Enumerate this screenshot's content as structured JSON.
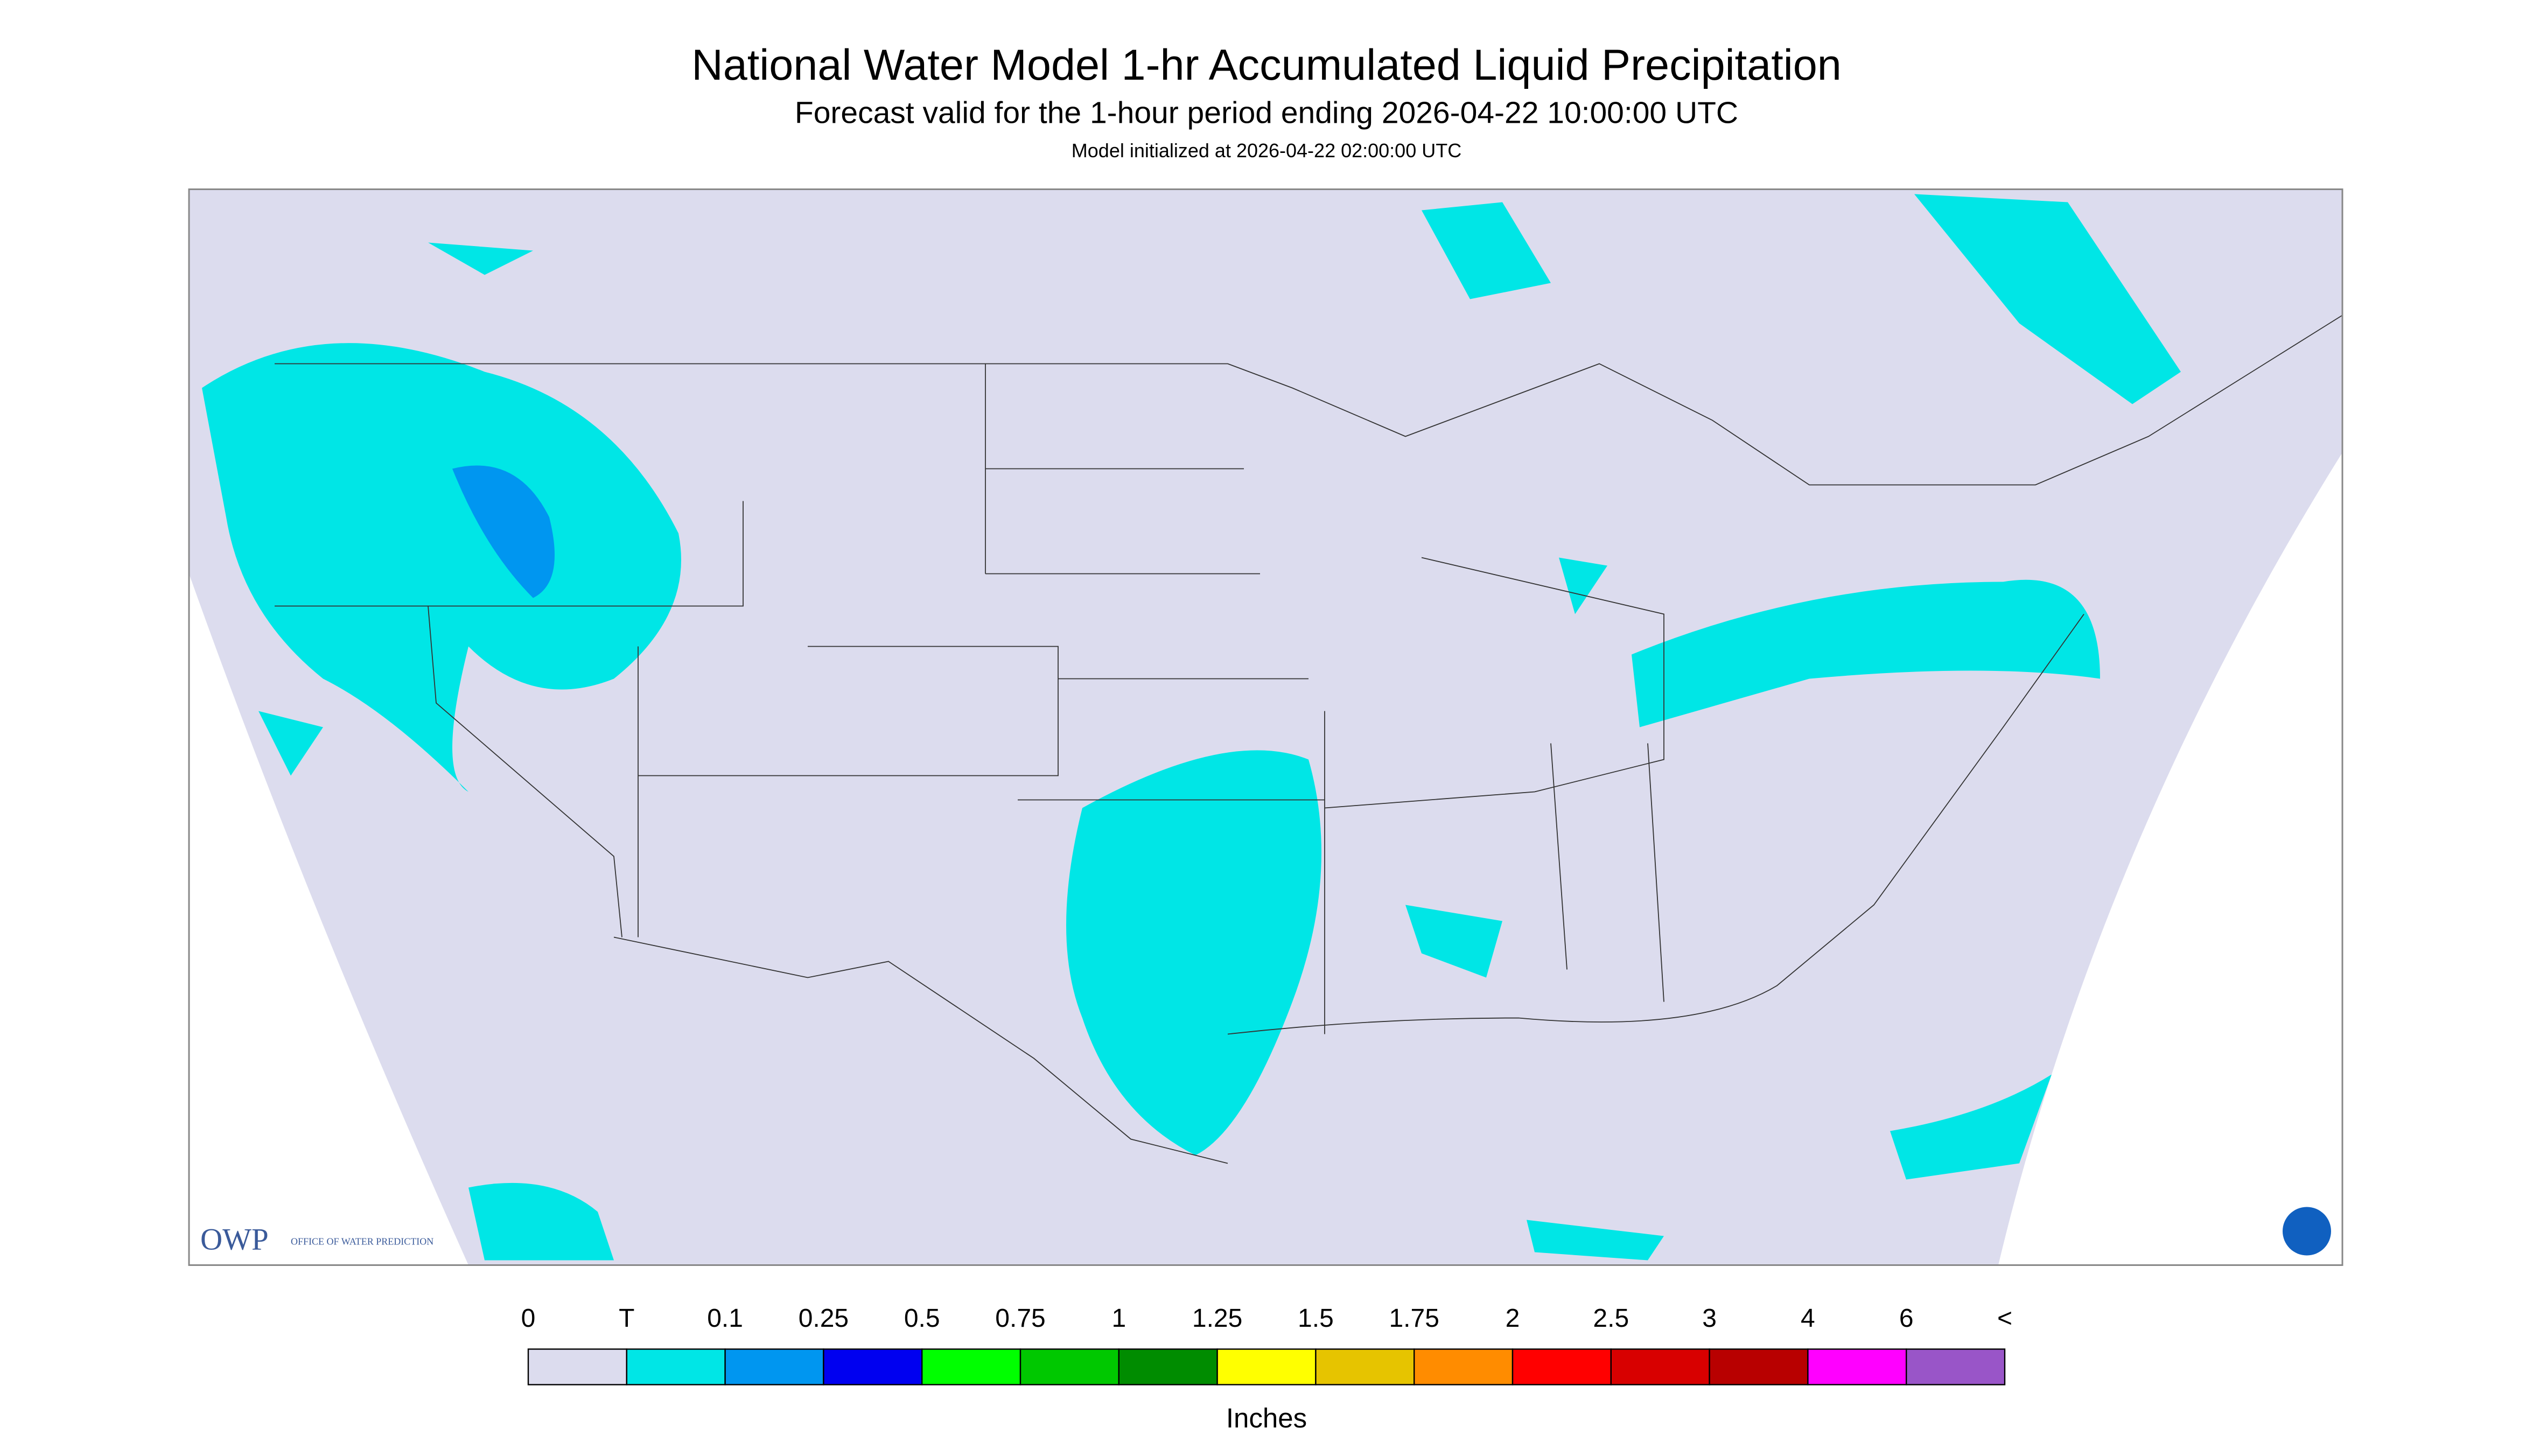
{
  "header": {
    "title": "National Water Model 1-hr Accumulated Liquid Precipitation",
    "subtitle": "Forecast valid for the 1-hour period ending 2026-04-22 10:00:00 UTC",
    "initialized": "Model initialized at 2026-04-22 02:00:00 UTC"
  },
  "logo": {
    "abbr": "OWP",
    "name": "OFFICE OF WATER PREDICTION"
  },
  "legend": {
    "labels": [
      "0",
      "T",
      "0.1",
      "0.25",
      "0.5",
      "0.75",
      "1",
      "1.25",
      "1.5",
      "1.75",
      "2",
      "2.5",
      "3",
      "4",
      "6",
      "<"
    ],
    "colors": [
      "#dcdcee",
      "#00e6e6",
      "#0096f0",
      "#0000f0",
      "#00ff00",
      "#00c800",
      "#008c00",
      "#ffff00",
      "#e6c400",
      "#ff8c00",
      "#ff0000",
      "#d80000",
      "#b80000",
      "#ff00ff",
      "#9955c8"
    ],
    "unit": "Inches"
  }
}
